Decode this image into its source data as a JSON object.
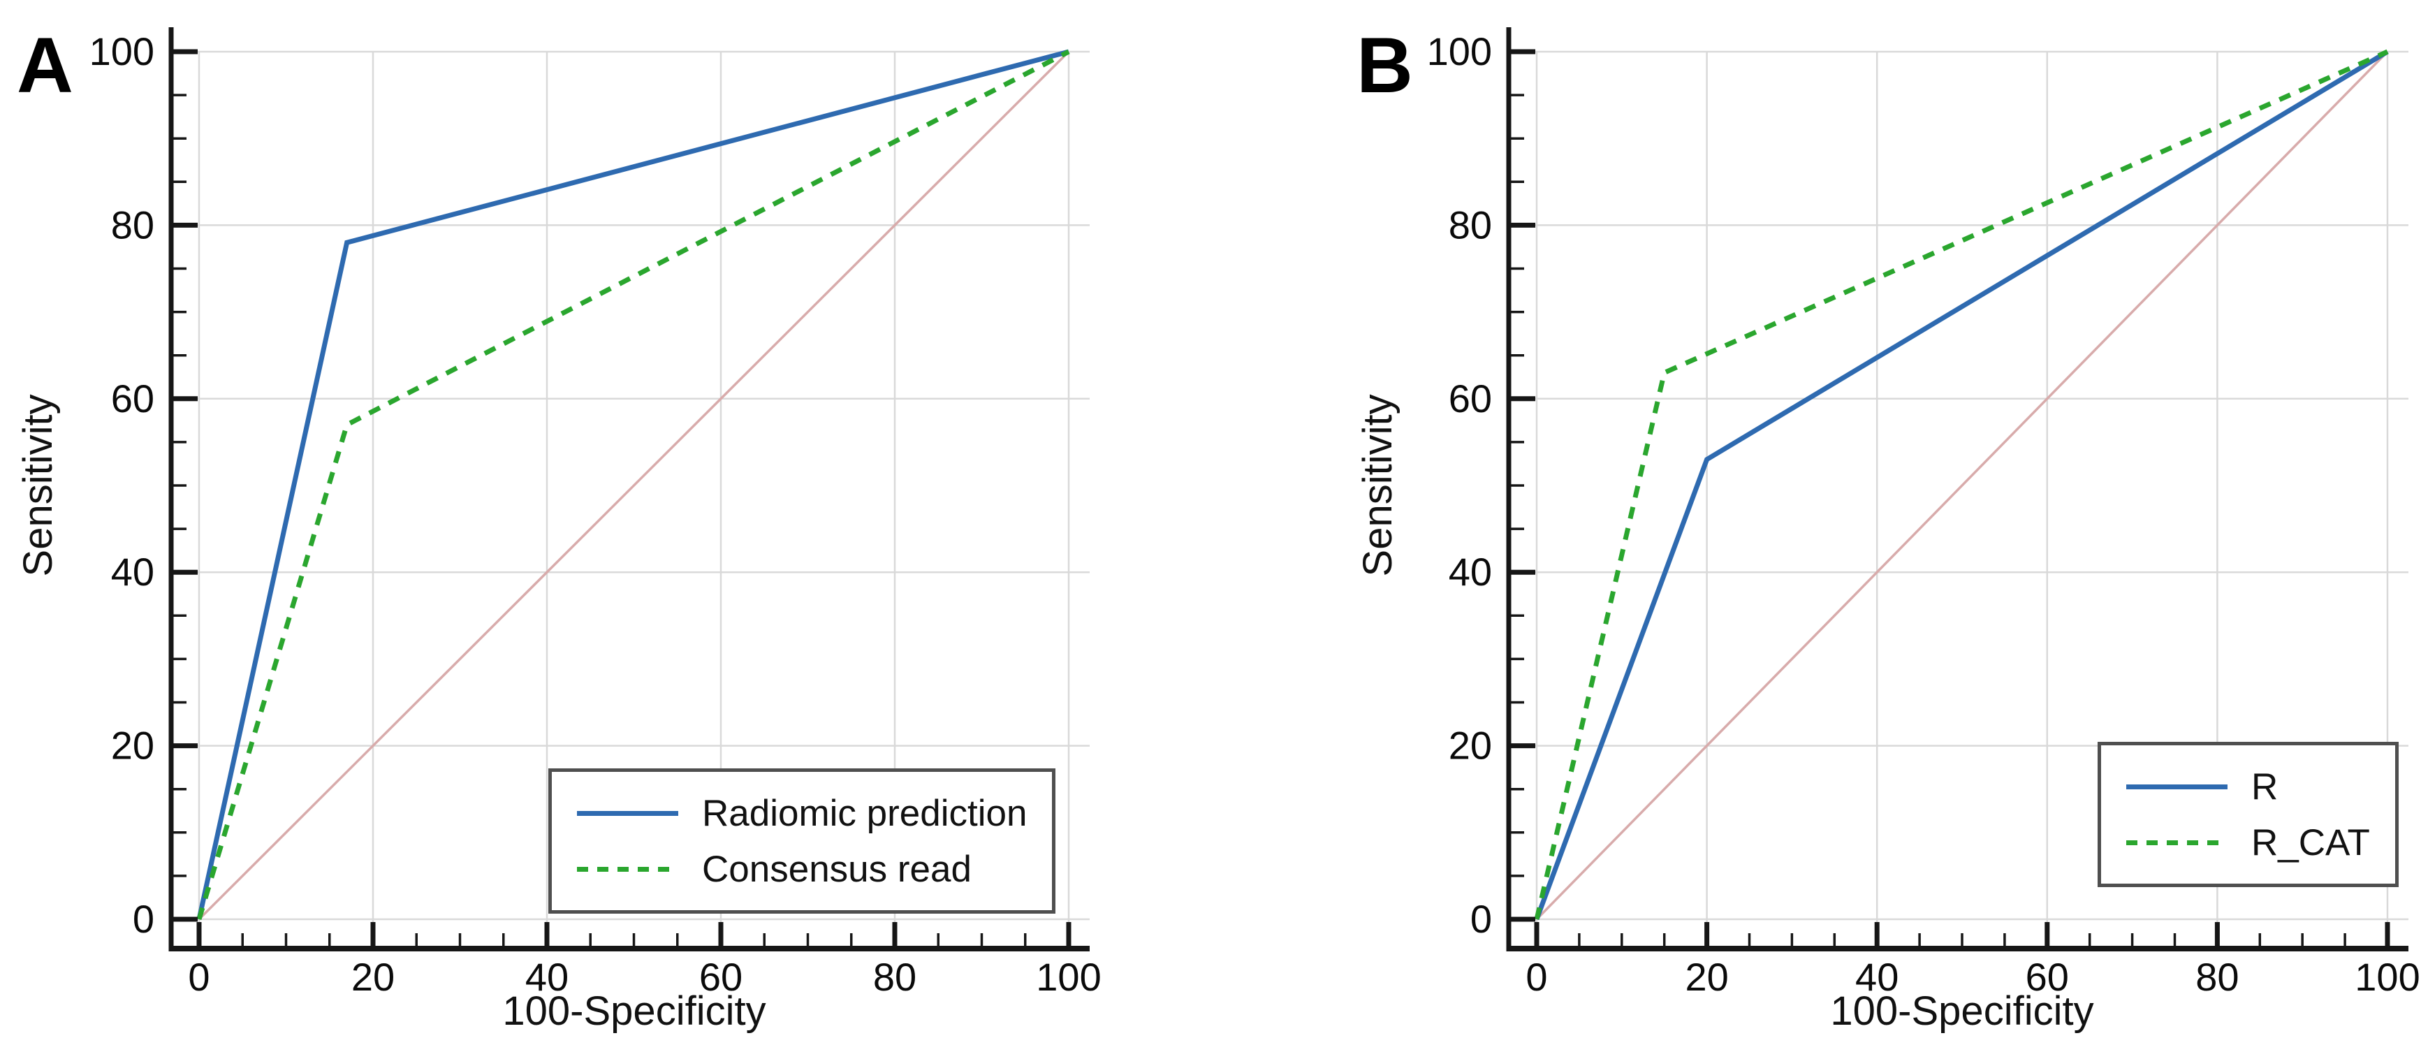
{
  "figure": {
    "background": "#ffffff"
  },
  "styles": {
    "grid_color": "#d9d9d9",
    "axis_color": "#161616",
    "tick_label_color": "#0a0a0a",
    "axis_title_color": "#111111",
    "panel_letter_color": "#000000",
    "legend_border_color": "#4f4f4f",
    "legend_bg": "#ffffff",
    "reference_color": "#d8abab",
    "series_blue": "#2e6ab0",
    "series_green": "#2aa62e"
  },
  "chart_data": [
    {
      "panel": "A",
      "type": "line",
      "xlabel": "100-Specificity",
      "ylabel": "Sensitivity",
      "xlim": [
        0,
        100
      ],
      "ylim": [
        0,
        100
      ],
      "xticks": [
        0,
        20,
        40,
        60,
        80,
        100
      ],
      "yticks": [
        0,
        20,
        40,
        60,
        80,
        100
      ],
      "minor_tick_step": 5,
      "grid": true,
      "legend_position": "bottom-right-inside",
      "series": [
        {
          "name": "Radiomic prediction",
          "style": "solid",
          "color": "#2e6ab0",
          "points": [
            [
              0,
              0
            ],
            [
              17,
              78
            ],
            [
              100,
              100
            ]
          ]
        },
        {
          "name": "Consensus read",
          "style": "dashed",
          "color": "#2aa62e",
          "points": [
            [
              0,
              0
            ],
            [
              17,
              57
            ],
            [
              100,
              100
            ]
          ]
        }
      ],
      "reference_line": {
        "name": "chance-diagonal",
        "color": "#d8abab",
        "points": [
          [
            0,
            0
          ],
          [
            100,
            100
          ]
        ]
      }
    },
    {
      "panel": "B",
      "type": "line",
      "xlabel": "100-Specificity",
      "ylabel": "Sensitivity",
      "xlim": [
        0,
        100
      ],
      "ylim": [
        0,
        100
      ],
      "xticks": [
        0,
        20,
        40,
        60,
        80,
        100
      ],
      "yticks": [
        0,
        20,
        40,
        60,
        80,
        100
      ],
      "minor_tick_step": 5,
      "grid": true,
      "legend_position": "bottom-right-inside",
      "series": [
        {
          "name": "R",
          "style": "solid",
          "color": "#2e6ab0",
          "points": [
            [
              0,
              0
            ],
            [
              20,
              53
            ],
            [
              100,
              100
            ]
          ]
        },
        {
          "name": "R_CAT",
          "style": "dashed",
          "color": "#2aa62e",
          "points": [
            [
              0,
              0
            ],
            [
              15,
              63
            ],
            [
              100,
              100
            ]
          ]
        }
      ],
      "reference_line": {
        "name": "chance-diagonal",
        "color": "#d8abab",
        "points": [
          [
            0,
            0
          ],
          [
            100,
            100
          ]
        ]
      }
    }
  ]
}
